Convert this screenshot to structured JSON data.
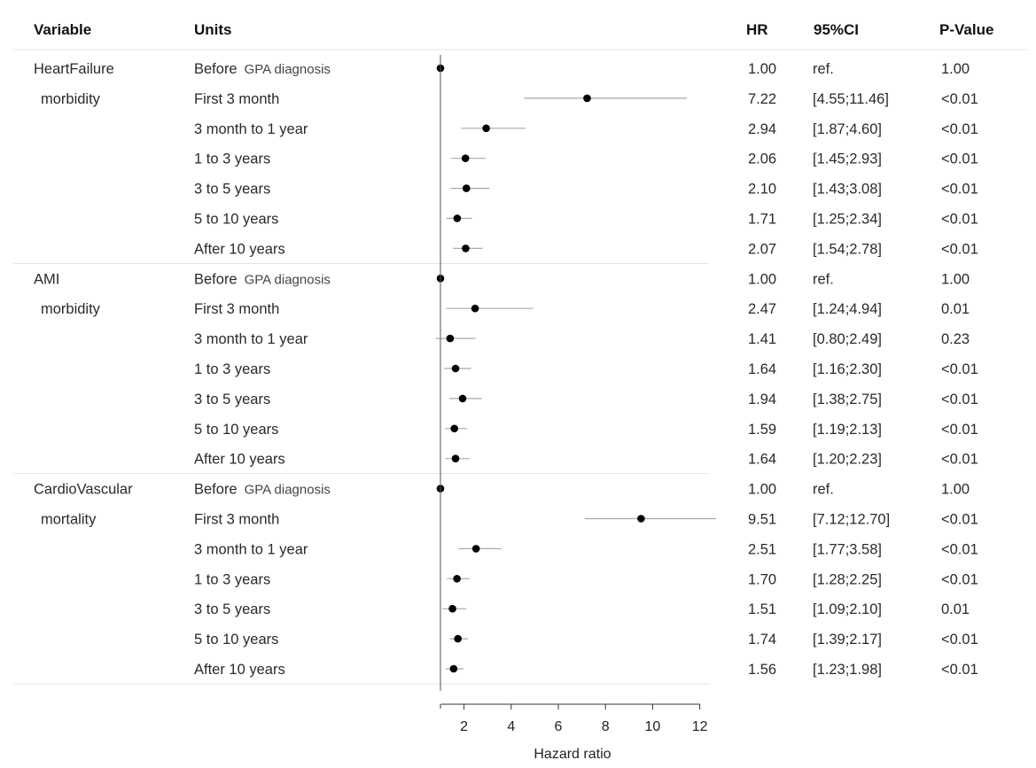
{
  "headers": {
    "variable": "Variable",
    "units": "Units",
    "hr": "HR",
    "ci": "95%CI",
    "p": "P-Value"
  },
  "chart_data": {
    "type": "forest",
    "xlabel": "Hazard ratio",
    "xticks": [
      2,
      4,
      6,
      8,
      10,
      12
    ],
    "xlim": [
      1,
      12.7
    ],
    "reference_line": 1,
    "groups": [
      {
        "label_line1": "HeartFailure",
        "label_line2": "morbidity",
        "rows": [
          {
            "unit_main": "Before",
            "unit_sub": "GPA diagnosis",
            "hr": 1.0,
            "lo": null,
            "hi": null,
            "hr_text": "1.00",
            "ci_text": "ref.",
            "p_text": "1.00"
          },
          {
            "unit_main": "First 3 month",
            "unit_sub": "",
            "hr": 7.22,
            "lo": 4.55,
            "hi": 11.46,
            "hr_text": "7.22",
            "ci_text": "[4.55;11.46]",
            "p_text": "<0.01"
          },
          {
            "unit_main": "3 month to 1 year",
            "unit_sub": "",
            "hr": 2.94,
            "lo": 1.87,
            "hi": 4.6,
            "hr_text": "2.94",
            "ci_text": "[1.87;4.60]",
            "p_text": "<0.01"
          },
          {
            "unit_main": "1 to 3 years",
            "unit_sub": "",
            "hr": 2.06,
            "lo": 1.45,
            "hi": 2.93,
            "hr_text": "2.06",
            "ci_text": "[1.45;2.93]",
            "p_text": "<0.01"
          },
          {
            "unit_main": "3 to 5 years",
            "unit_sub": "",
            "hr": 2.1,
            "lo": 1.43,
            "hi": 3.08,
            "hr_text": "2.10",
            "ci_text": "[1.43;3.08]",
            "p_text": "<0.01"
          },
          {
            "unit_main": "5 to 10 years",
            "unit_sub": "",
            "hr": 1.71,
            "lo": 1.25,
            "hi": 2.34,
            "hr_text": "1.71",
            "ci_text": "[1.25;2.34]",
            "p_text": "<0.01"
          },
          {
            "unit_main": "After 10 years",
            "unit_sub": "",
            "hr": 2.07,
            "lo": 1.54,
            "hi": 2.78,
            "hr_text": "2.07",
            "ci_text": "[1.54;2.78]",
            "p_text": "<0.01"
          }
        ]
      },
      {
        "label_line1": "AMI",
        "label_line2": "morbidity",
        "rows": [
          {
            "unit_main": "Before",
            "unit_sub": "GPA diagnosis",
            "hr": 1.0,
            "lo": null,
            "hi": null,
            "hr_text": "1.00",
            "ci_text": "ref.",
            "p_text": "1.00"
          },
          {
            "unit_main": "First 3 month",
            "unit_sub": "",
            "hr": 2.47,
            "lo": 1.24,
            "hi": 4.94,
            "hr_text": "2.47",
            "ci_text": "[1.24;4.94]",
            "p_text": "0.01"
          },
          {
            "unit_main": "3 month to 1 year",
            "unit_sub": "",
            "hr": 1.41,
            "lo": 0.8,
            "hi": 2.49,
            "hr_text": "1.41",
            "ci_text": "[0.80;2.49]",
            "p_text": "0.23"
          },
          {
            "unit_main": "1 to 3 years",
            "unit_sub": "",
            "hr": 1.64,
            "lo": 1.16,
            "hi": 2.3,
            "hr_text": "1.64",
            "ci_text": "[1.16;2.30]",
            "p_text": "<0.01"
          },
          {
            "unit_main": "3 to 5 years",
            "unit_sub": "",
            "hr": 1.94,
            "lo": 1.38,
            "hi": 2.75,
            "hr_text": "1.94",
            "ci_text": "[1.38;2.75]",
            "p_text": "<0.01"
          },
          {
            "unit_main": "5 to 10 years",
            "unit_sub": "",
            "hr": 1.59,
            "lo": 1.19,
            "hi": 2.13,
            "hr_text": "1.59",
            "ci_text": "[1.19;2.13]",
            "p_text": "<0.01"
          },
          {
            "unit_main": "After 10 years",
            "unit_sub": "",
            "hr": 1.64,
            "lo": 1.2,
            "hi": 2.23,
            "hr_text": "1.64",
            "ci_text": "[1.20;2.23]",
            "p_text": "<0.01"
          }
        ]
      },
      {
        "label_line1": "CardioVascular",
        "label_line2": "mortality",
        "rows": [
          {
            "unit_main": "Before",
            "unit_sub": "GPA diagnosis",
            "hr": 1.0,
            "lo": null,
            "hi": null,
            "hr_text": "1.00",
            "ci_text": "ref.",
            "p_text": "1.00"
          },
          {
            "unit_main": "First 3 month",
            "unit_sub": "",
            "hr": 9.51,
            "lo": 7.12,
            "hi": 12.7,
            "hr_text": "9.51",
            "ci_text": "[7.12;12.70]",
            "p_text": "<0.01"
          },
          {
            "unit_main": "3 month to 1 year",
            "unit_sub": "",
            "hr": 2.51,
            "lo": 1.77,
            "hi": 3.58,
            "hr_text": "2.51",
            "ci_text": "[1.77;3.58]",
            "p_text": "<0.01"
          },
          {
            "unit_main": "1 to 3 years",
            "unit_sub": "",
            "hr": 1.7,
            "lo": 1.28,
            "hi": 2.25,
            "hr_text": "1.70",
            "ci_text": "[1.28;2.25]",
            "p_text": "<0.01"
          },
          {
            "unit_main": "3 to 5 years",
            "unit_sub": "",
            "hr": 1.51,
            "lo": 1.09,
            "hi": 2.1,
            "hr_text": "1.51",
            "ci_text": "[1.09;2.10]",
            "p_text": "0.01"
          },
          {
            "unit_main": "5 to 10 years",
            "unit_sub": "",
            "hr": 1.74,
            "lo": 1.39,
            "hi": 2.17,
            "hr_text": "1.74",
            "ci_text": "[1.39;2.17]",
            "p_text": "<0.01"
          },
          {
            "unit_main": "After 10 years",
            "unit_sub": "",
            "hr": 1.56,
            "lo": 1.23,
            "hi": 1.98,
            "hr_text": "1.56",
            "ci_text": "[1.23;1.98]",
            "p_text": "<0.01"
          }
        ]
      }
    ]
  }
}
